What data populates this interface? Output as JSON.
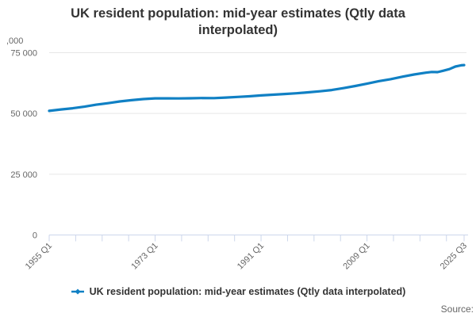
{
  "title": {
    "line1": "UK resident population: mid-year estimates (Qtly data",
    "line2": "interpolated)"
  },
  "source_label": "Source:",
  "chart_data": {
    "type": "line",
    "title": "UK resident population: mid-year estimates (Qtly data interpolated)",
    "y_unit_label": ",000",
    "xlabel": "",
    "ylabel": "",
    "ylim": [
      0,
      75000
    ],
    "xlim_years": [
      1955.0,
      2025.5
    ],
    "grid": "horizontal",
    "legend_position": "bottom-center",
    "colors": {
      "line": "#1080c4",
      "grid": "#e6e6e6",
      "axis": "#ccd6eb",
      "label": "#666666",
      "title": "#333333"
    },
    "yticks": [
      {
        "value": 0,
        "label": "0"
      },
      {
        "value": 25000,
        "label": "25 000"
      },
      {
        "value": 50000,
        "label": "50 000"
      },
      {
        "value": 75000,
        "label": "75 000"
      }
    ],
    "xticks": [
      {
        "value": 1955.0,
        "label": "1955 Q1"
      },
      {
        "value": 1973.0,
        "label": "1973 Q1"
      },
      {
        "value": 1991.0,
        "label": "1991 Q1"
      },
      {
        "value": 2009.0,
        "label": "2009 Q1"
      },
      {
        "value": 2025.5,
        "label": "2025 Q3"
      }
    ],
    "minor_tick_step_years": 4.5,
    "series": [
      {
        "name": "UK resident population: mid-year estimates (Qtly data interpolated)",
        "color": "#1080c4",
        "points": [
          [
            1955,
            51064
          ],
          [
            1957,
            51657
          ],
          [
            1959,
            52157
          ],
          [
            1961,
            52807
          ],
          [
            1963,
            53625
          ],
          [
            1965,
            54218
          ],
          [
            1967,
            54959
          ],
          [
            1969,
            55461
          ],
          [
            1971,
            55928
          ],
          [
            1973,
            56223
          ],
          [
            1975,
            56226
          ],
          [
            1977,
            56190
          ],
          [
            1979,
            56240
          ],
          [
            1981,
            56357
          ],
          [
            1983,
            56316
          ],
          [
            1985,
            56554
          ],
          [
            1987,
            56804
          ],
          [
            1989,
            57076
          ],
          [
            1991,
            57439
          ],
          [
            1993,
            57714
          ],
          [
            1995,
            58019
          ],
          [
            1997,
            58317
          ],
          [
            1999,
            58684
          ],
          [
            2001,
            59113
          ],
          [
            2003,
            59636
          ],
          [
            2005,
            60413
          ],
          [
            2007,
            61319
          ],
          [
            2009,
            62260
          ],
          [
            2011,
            63285
          ],
          [
            2013,
            64106
          ],
          [
            2015,
            65110
          ],
          [
            2017,
            66040
          ],
          [
            2019,
            66797
          ],
          [
            2020,
            67081
          ],
          [
            2021,
            67026
          ],
          [
            2022,
            67596
          ],
          [
            2023,
            68265
          ],
          [
            2024,
            69300
          ],
          [
            2024.5,
            69550
          ],
          [
            2025,
            69800
          ],
          [
            2025.5,
            69900
          ]
        ]
      }
    ]
  }
}
